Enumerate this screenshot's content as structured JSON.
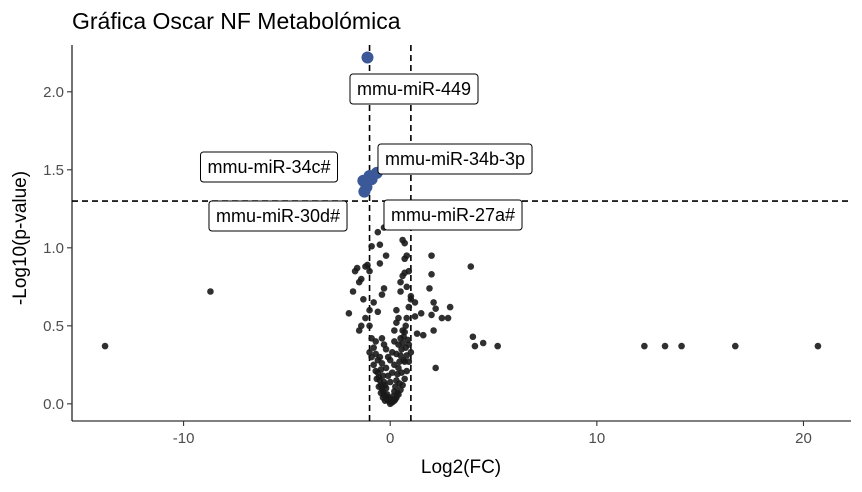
{
  "chart_data": {
    "type": "scatter",
    "title": "Gráfica Oscar NF Metabolómica",
    "xlabel": "Log2(FC)",
    "ylabel": "-Log10(p-value)",
    "xlim": [
      -15.4,
      22.3
    ],
    "ylim": [
      -0.11,
      2.3
    ],
    "x_ticks": [
      -10,
      0,
      10,
      20
    ],
    "x_tick_labels": [
      "-10",
      "0",
      "10",
      "20"
    ],
    "y_ticks": [
      0,
      0.5,
      1,
      1.5,
      2
    ],
    "y_tick_labels": [
      "0.0",
      "0.5",
      "1.0",
      "1.5",
      "2.0"
    ],
    "thresholds": {
      "x": [
        -1,
        1
      ],
      "y": 1.3
    },
    "grid": false,
    "legend": "none",
    "colors": {
      "significant": "#3b5998",
      "non_significant": "#1a1a1a"
    },
    "significant_points": [
      {
        "x": -1.1,
        "y": 2.22,
        "label": "mmu-miR-449"
      },
      {
        "x": -1.3,
        "y": 1.43,
        "label": "mmu-miR-34c#"
      },
      {
        "x": -1.0,
        "y": 1.46,
        "label": "mmu-miR-34b-3p"
      },
      {
        "x": -1.25,
        "y": 1.36,
        "label": "mmu-miR-30d#"
      },
      {
        "x": -1.15,
        "y": 1.39,
        "label": "mmu-miR-27a#"
      },
      {
        "x": -0.9,
        "y": 1.44,
        "label": ""
      },
      {
        "x": -0.65,
        "y": 1.48,
        "label": ""
      }
    ],
    "points": [
      [
        -13.8,
        0.37
      ],
      [
        -8.7,
        0.72
      ],
      [
        12.3,
        0.37
      ],
      [
        13.3,
        0.37
      ],
      [
        14.1,
        0.37
      ],
      [
        16.7,
        0.37
      ],
      [
        20.7,
        0.37
      ],
      [
        3.9,
        0.88
      ],
      [
        4.0,
        0.43
      ],
      [
        4.1,
        0.37
      ],
      [
        4.5,
        0.39
      ],
      [
        5.2,
        0.37
      ],
      [
        2.0,
        0.95
      ],
      [
        2.0,
        0.83
      ],
      [
        2.1,
        0.47
      ],
      [
        2.1,
        0.65
      ],
      [
        2.2,
        0.61
      ],
      [
        1.9,
        0.74
      ],
      [
        2.5,
        0.55
      ],
      [
        2.2,
        0.23
      ],
      [
        2.9,
        0.62
      ],
      [
        2.8,
        0.55
      ],
      [
        2.0,
        0.57
      ],
      [
        -0.3,
        1.13
      ],
      [
        -0.2,
        0.95
      ],
      [
        -0.5,
        0.9
      ],
      [
        -0.5,
        1.02
      ],
      [
        -0.6,
        1.1
      ],
      [
        -0.9,
        1.01
      ],
      [
        -1.0,
        0.85
      ],
      [
        -1.1,
        0.89
      ],
      [
        -1.2,
        0.88
      ],
      [
        -1.4,
        0.8
      ],
      [
        -1.5,
        0.78
      ],
      [
        -1.6,
        0.87
      ],
      [
        -1.7,
        0.85
      ],
      [
        -1.8,
        0.72
      ],
      [
        -2.0,
        0.58
      ],
      [
        -1.3,
        0.67
      ],
      [
        -1.2,
        0.55
      ],
      [
        -1.4,
        0.5
      ],
      [
        -1.5,
        0.47
      ],
      [
        -1.0,
        0.6
      ],
      [
        -0.8,
        0.65
      ],
      [
        -0.6,
        0.59
      ],
      [
        -0.4,
        0.7
      ],
      [
        -0.3,
        0.74
      ],
      [
        0.6,
        1.05
      ],
      [
        0.7,
        1.03
      ],
      [
        0.7,
        0.93
      ],
      [
        0.7,
        0.84
      ],
      [
        0.8,
        0.95
      ],
      [
        0.8,
        0.75
      ],
      [
        0.9,
        0.85
      ],
      [
        1.0,
        0.67
      ],
      [
        0.9,
        0.62
      ],
      [
        1.0,
        0.69
      ],
      [
        0.6,
        0.82
      ],
      [
        0.5,
        0.72
      ],
      [
        0.5,
        0.78
      ],
      [
        0.3,
        0.6
      ],
      [
        1.2,
        0.65
      ],
      [
        1.5,
        0.58
      ],
      [
        1.2,
        0.56
      ],
      [
        0.8,
        0.55
      ],
      [
        1.3,
        0.45
      ],
      [
        1.6,
        0.44
      ],
      [
        -1.0,
        0.5
      ],
      [
        -0.9,
        0.42
      ],
      [
        -0.8,
        0.36
      ],
      [
        -0.7,
        0.32
      ],
      [
        -0.6,
        0.28
      ],
      [
        -0.5,
        0.3
      ],
      [
        -0.45,
        0.22
      ],
      [
        -0.4,
        0.26
      ],
      [
        -0.35,
        0.18
      ],
      [
        -0.3,
        0.14
      ],
      [
        -0.25,
        0.12
      ],
      [
        -0.2,
        0.1
      ],
      [
        -0.15,
        0.06
      ],
      [
        -0.1,
        0.04
      ],
      [
        -0.05,
        0.02
      ],
      [
        0.0,
        0.0
      ],
      [
        0.05,
        0.01
      ],
      [
        0.1,
        0.03
      ],
      [
        0.15,
        0.05
      ],
      [
        0.2,
        0.08
      ],
      [
        0.25,
        0.11
      ],
      [
        0.3,
        0.15
      ],
      [
        0.35,
        0.19
      ],
      [
        0.4,
        0.23
      ],
      [
        0.45,
        0.27
      ],
      [
        0.5,
        0.31
      ],
      [
        0.55,
        0.35
      ],
      [
        0.6,
        0.39
      ],
      [
        0.65,
        0.43
      ],
      [
        0.7,
        0.46
      ],
      [
        0.75,
        0.5
      ],
      [
        -0.6,
        0.2
      ],
      [
        -0.55,
        0.17
      ],
      [
        -0.5,
        0.15
      ],
      [
        -0.45,
        0.12
      ],
      [
        -0.4,
        0.1
      ],
      [
        -0.35,
        0.08
      ],
      [
        -0.3,
        0.06
      ],
      [
        -0.25,
        0.05
      ],
      [
        -0.2,
        0.04
      ],
      [
        -0.15,
        0.03
      ],
      [
        -0.1,
        0.02
      ],
      [
        0.1,
        0.01
      ],
      [
        0.2,
        0.02
      ],
      [
        0.3,
        0.04
      ],
      [
        0.4,
        0.06
      ],
      [
        0.5,
        0.09
      ],
      [
        0.6,
        0.12
      ],
      [
        0.7,
        0.16
      ],
      [
        0.8,
        0.21
      ],
      [
        0.9,
        0.27
      ],
      [
        1.0,
        0.33
      ],
      [
        -0.8,
        0.25
      ],
      [
        -0.7,
        0.21
      ],
      [
        -0.65,
        0.16
      ],
      [
        -0.55,
        0.11
      ],
      [
        -0.45,
        0.07
      ],
      [
        -0.35,
        0.04
      ],
      [
        -0.25,
        0.02
      ],
      [
        0.25,
        0.03
      ],
      [
        0.35,
        0.07
      ],
      [
        0.45,
        0.13
      ],
      [
        0.55,
        0.2
      ],
      [
        0.65,
        0.28
      ],
      [
        0.75,
        0.36
      ],
      [
        0.85,
        0.41
      ],
      [
        -0.2,
        0.23
      ],
      [
        -0.1,
        0.18
      ],
      [
        0.0,
        0.14
      ],
      [
        0.1,
        0.2
      ],
      [
        0.2,
        0.25
      ],
      [
        0.3,
        0.32
      ],
      [
        0.4,
        0.38
      ],
      [
        0.5,
        0.42
      ],
      [
        0.6,
        0.47
      ],
      [
        0.3,
        0.52
      ],
      [
        0.4,
        0.55
      ],
      [
        0.2,
        0.4
      ],
      [
        0.1,
        0.33
      ],
      [
        0.0,
        0.28
      ],
      [
        -0.1,
        0.3
      ],
      [
        -0.2,
        0.35
      ],
      [
        -0.3,
        0.38
      ],
      [
        -0.4,
        0.42
      ],
      [
        0.2,
        0.47
      ],
      [
        0.7,
        0.27
      ],
      [
        0.8,
        0.31
      ],
      [
        0.9,
        0.38
      ],
      [
        -0.7,
        0.4
      ],
      [
        -0.9,
        0.3
      ],
      [
        -1.0,
        0.33
      ]
    ]
  }
}
